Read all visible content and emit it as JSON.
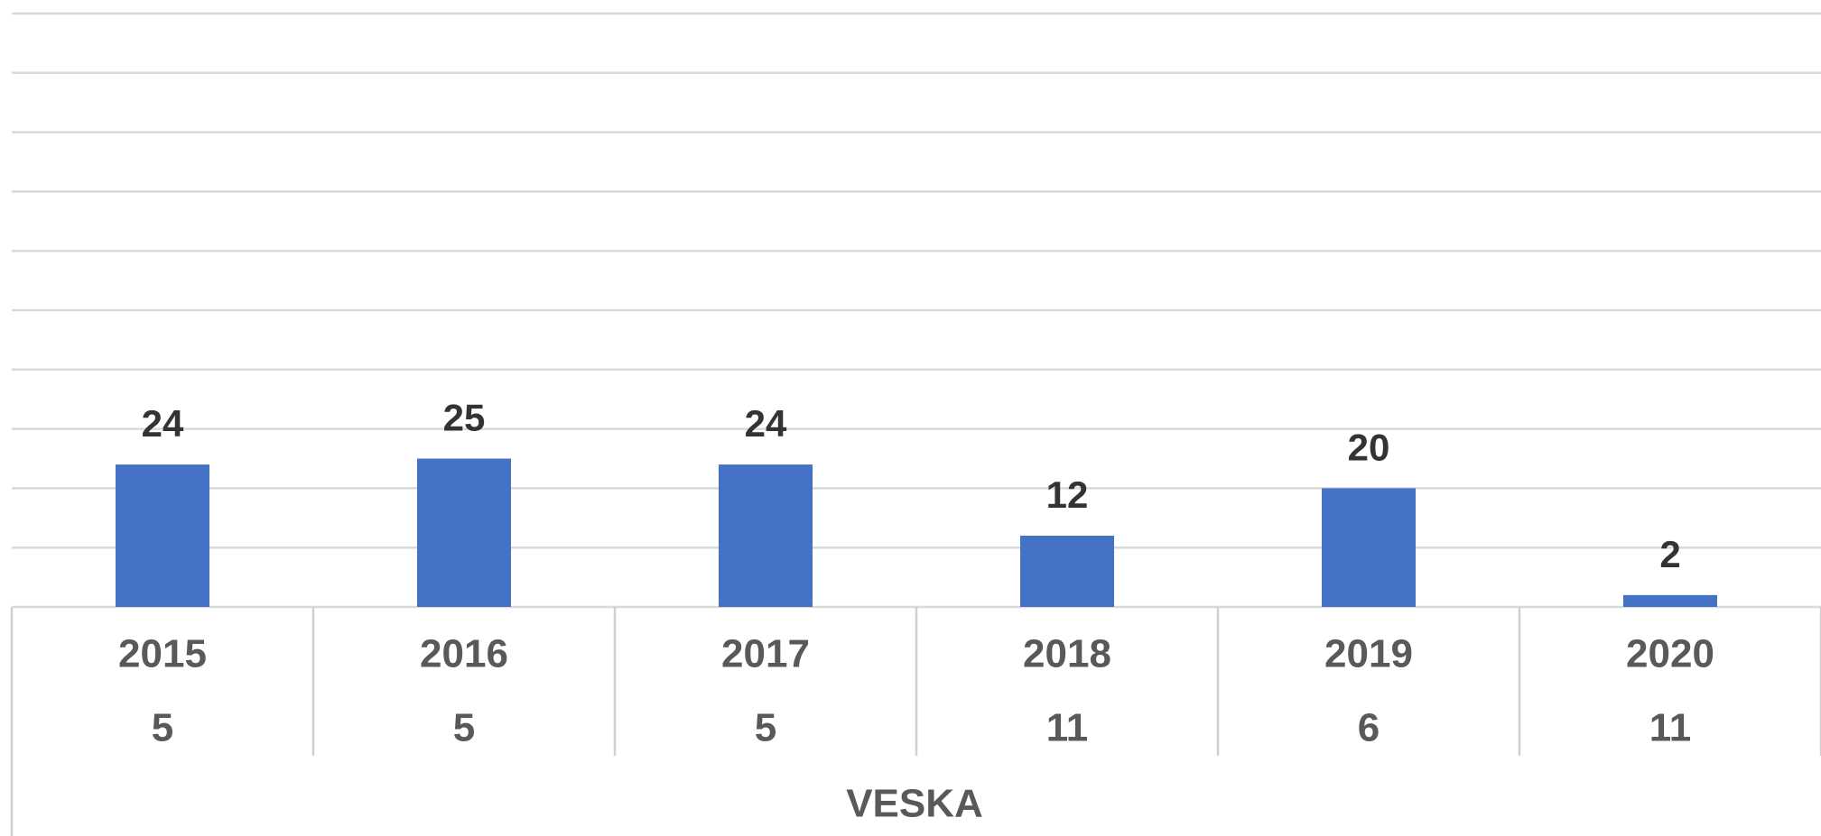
{
  "chart_data": {
    "type": "bar",
    "categories": [
      "2015",
      "2016",
      "2017",
      "2018",
      "2019",
      "2020"
    ],
    "subcategories": [
      "5",
      "5",
      "5",
      "11",
      "6",
      "11"
    ],
    "group_label": "VESKA",
    "values": [
      24,
      25,
      24,
      12,
      20,
      2
    ],
    "color": "#4472c4",
    "ylim": [
      0,
      100
    ],
    "yticks": [
      0,
      10,
      20,
      30,
      40,
      50,
      60,
      70,
      80,
      90,
      100
    ],
    "grid": true
  }
}
